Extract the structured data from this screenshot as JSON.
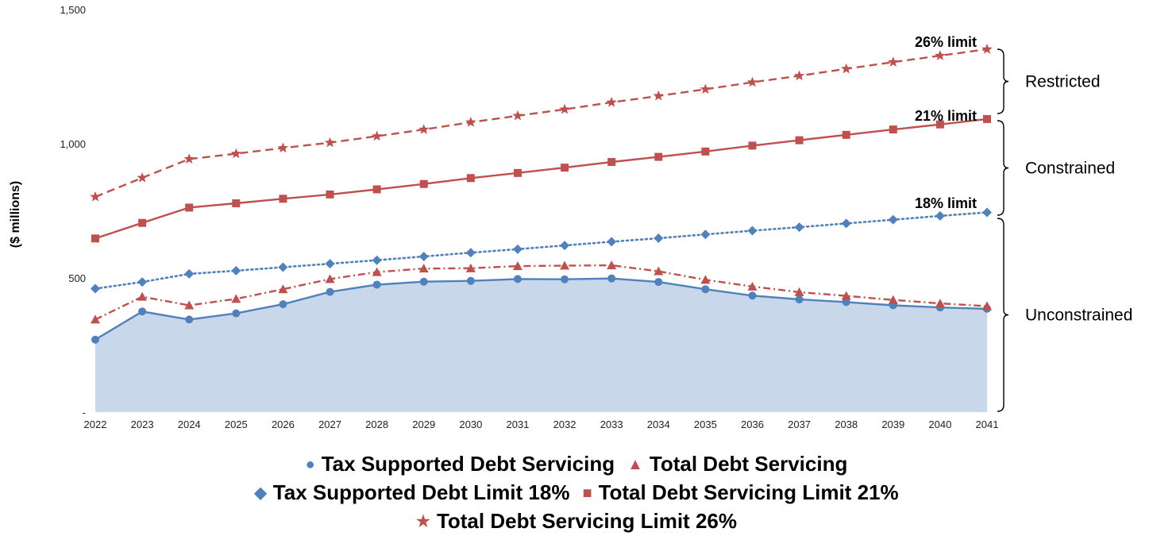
{
  "chart_data": {
    "type": "line",
    "title": "",
    "xlabel": "",
    "ylabel": "($ millions)",
    "ylim": [
      0,
      1500
    ],
    "yticks": [
      {
        "value": 0,
        "label": "-"
      },
      {
        "value": 500,
        "label": "500"
      },
      {
        "value": 1000,
        "label": "1,000"
      },
      {
        "value": 1500,
        "label": "1,500"
      }
    ],
    "categories": [
      "2022",
      "2023",
      "2024",
      "2025",
      "2026",
      "2027",
      "2028",
      "2029",
      "2030",
      "2031",
      "2032",
      "2033",
      "2034",
      "2035",
      "2036",
      "2037",
      "2038",
      "2039",
      "2040",
      "2041"
    ],
    "series": [
      {
        "name": "Tax Supported Debt Servicing",
        "style": "area",
        "marker": "circle",
        "color": "#4f81bd",
        "fill": "#c9d7ea",
        "values": [
          270,
          375,
          345,
          368,
          402,
          448,
          475,
          486,
          489,
          496,
          495,
          498,
          485,
          458,
          434,
          420,
          410,
          398,
          390,
          385
        ]
      },
      {
        "name": "Total Debt Servicing",
        "style": "dashdot",
        "marker": "triangle",
        "color": "#c0504d",
        "values": [
          345,
          430,
          398,
          422,
          458,
          496,
          522,
          535,
          536,
          544,
          546,
          547,
          525,
          493,
          468,
          447,
          433,
          418,
          405,
          395
        ]
      },
      {
        "name": "Tax Supported Debt Limit 18%",
        "style": "dotted",
        "marker": "diamond",
        "color": "#4f81bd",
        "values": [
          460,
          485,
          515,
          527,
          540,
          553,
          566,
          580,
          594,
          607,
          621,
          635,
          648,
          662,
          676,
          689,
          703,
          717,
          731,
          744
        ]
      },
      {
        "name": "Total Debt Servicing Limit 21%",
        "style": "solid",
        "marker": "square",
        "color": "#c0504d",
        "values": [
          647,
          705,
          762,
          778,
          795,
          811,
          830,
          850,
          872,
          891,
          911,
          932,
          951,
          971,
          993,
          1013,
          1033,
          1053,
          1072,
          1092
        ]
      },
      {
        "name": "Total Debt Servicing Limit 26%",
        "style": "dashed",
        "marker": "star",
        "color": "#c0504d",
        "values": [
          802,
          873,
          943,
          963,
          984,
          1004,
          1028,
          1053,
          1080,
          1104,
          1128,
          1154,
          1178,
          1203,
          1229,
          1253,
          1279,
          1304,
          1328,
          1352
        ]
      }
    ],
    "annotations": {
      "limit_labels": [
        "26% limit",
        "21% limit",
        "18% limit"
      ],
      "brackets": [
        "Restricted",
        "Constrained",
        "Unconstrained"
      ]
    },
    "legend_placement": "bottom",
    "grid": false
  },
  "legend": {
    "rows": [
      [
        {
          "label": "Tax Supported Debt Servicing",
          "marker": "●",
          "color": "#4f81bd"
        },
        {
          "label": "Total Debt Servicing",
          "marker": "▲",
          "color": "#c0504d"
        }
      ],
      [
        {
          "label": "Tax Supported Debt Limit 18%",
          "marker": "◆",
          "color": "#4f81bd"
        },
        {
          "label": "Total Debt Servicing Limit 21%",
          "marker": "■",
          "color": "#c0504d"
        }
      ],
      [
        {
          "label": "Total Debt Servicing Limit 26%",
          "marker": "★",
          "color": "#c0504d"
        }
      ]
    ]
  }
}
